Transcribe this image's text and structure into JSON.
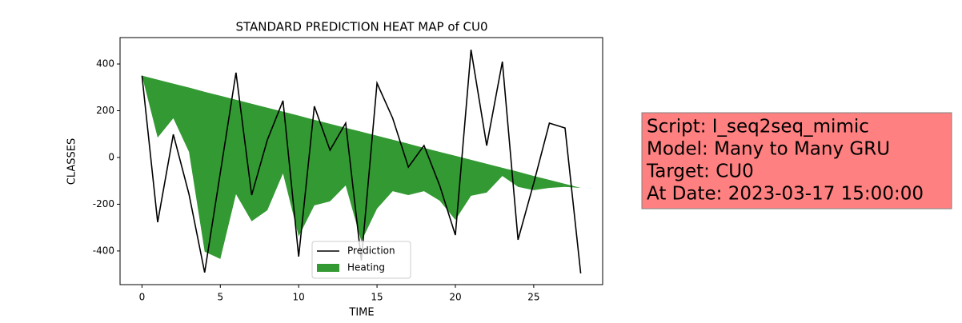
{
  "chart_data": {
    "type": "line",
    "title": "STANDARD PREDICTION HEAT MAP of CU0",
    "xlabel": "TIME",
    "ylabel": "CLASSES",
    "x": [
      0,
      1,
      2,
      3,
      4,
      5,
      6,
      7,
      8,
      9,
      10,
      11,
      12,
      13,
      14,
      15,
      16,
      17,
      18,
      19,
      20,
      21,
      22,
      23,
      24,
      25,
      26,
      27,
      28
    ],
    "series": [
      {
        "name": "Prediction",
        "color": "#000000",
        "values": [
          350,
          -277,
          99,
          -157,
          -492,
          -65,
          363,
          -161,
          75,
          243,
          -424,
          219,
          31,
          147,
          -440,
          318,
          168,
          -41,
          51,
          -120,
          -332,
          461,
          51,
          410,
          -352,
          -110,
          147,
          126,
          -496
        ]
      },
      {
        "name": "Heating",
        "type": "area",
        "color": "#339933",
        "values": [
          350,
          85,
          168,
          24,
          -403,
          -434,
          -157,
          -273,
          -226,
          -68,
          -338,
          -205,
          -188,
          -120,
          -359,
          -219,
          -144,
          -161,
          -144,
          -185,
          -267,
          -164,
          -150,
          -79,
          -126,
          -140,
          -130,
          -126,
          -130
        ],
        "upper": [
          350,
          333,
          316,
          299,
          281,
          264,
          247,
          230,
          213,
          196,
          179,
          161,
          144,
          127,
          110,
          93,
          76,
          59,
          41,
          24,
          7,
          -10,
          -27,
          -44,
          -61,
          -79,
          -96,
          -113,
          -130
        ]
      }
    ],
    "xlim": [
      -1.4,
      29.4
    ],
    "xticks": [
      0,
      5,
      10,
      15,
      20,
      25
    ],
    "ylim": [
      -544,
      513
    ],
    "yticks": [
      -400,
      -200,
      0,
      200,
      400
    ],
    "legend": "lower center",
    "textbox": {
      "lines": [
        "Script: I_seq2seq_mimic",
        "Model: Many to Many GRU",
        "Target: CU0",
        "At Date: 2023-03-17 15:00:00"
      ],
      "color": "#ff8080"
    }
  }
}
